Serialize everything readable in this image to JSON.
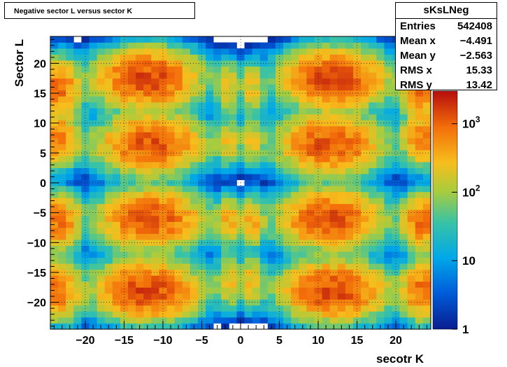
{
  "chart_data": {
    "type": "heatmap",
    "title": "Negative sector L versus sector K",
    "xlabel": "secotr K",
    "ylabel": "Sector L",
    "xlim": [
      -24.5,
      24.5
    ],
    "ylim": [
      -24.5,
      24.5
    ],
    "x_ticks": [
      "−20",
      "−15",
      "−10",
      "−5",
      "0",
      "5",
      "10",
      "15",
      "20"
    ],
    "x_tick_values": [
      -20,
      -15,
      -10,
      -5,
      0,
      5,
      10,
      15,
      20
    ],
    "y_ticks": [
      "−20",
      "−15",
      "−10",
      "−5",
      "0",
      "5",
      "10",
      "15",
      "20"
    ],
    "y_tick_values": [
      -20,
      -15,
      -10,
      -5,
      0,
      5,
      10,
      15,
      20
    ],
    "z_scale": "log",
    "zlim": [
      1,
      3000
    ],
    "palette_labels": [
      {
        "base": "1",
        "exp": "",
        "value": 1
      },
      {
        "base": "10",
        "exp": "",
        "value": 10
      },
      {
        "base": "10",
        "exp": "2",
        "value": 100
      },
      {
        "base": "10",
        "exp": "3",
        "value": 1000
      }
    ],
    "grid": true,
    "clusters": [
      {
        "cx": -12,
        "cy": 17.5,
        "sx": 3.2,
        "sy": 2.3,
        "peak": 1500
      },
      {
        "cx": 12,
        "cy": 17.5,
        "sx": 3.2,
        "sy": 2.3,
        "peak": 1500
      },
      {
        "cx": -12,
        "cy": -18,
        "sx": 3.2,
        "sy": 2.3,
        "peak": 1500
      },
      {
        "cx": 12,
        "cy": -18,
        "sx": 3.2,
        "sy": 2.3,
        "peak": 1500
      },
      {
        "cx": -11.5,
        "cy": 6.5,
        "sx": 3.2,
        "sy": 2.3,
        "peak": 1300
      },
      {
        "cx": 11.5,
        "cy": 6.5,
        "sx": 3.2,
        "sy": 2.3,
        "peak": 1300
      },
      {
        "cx": -11.5,
        "cy": -6,
        "sx": 3.2,
        "sy": 2.3,
        "peak": 1300
      },
      {
        "cx": 11.5,
        "cy": -6,
        "sx": 3.2,
        "sy": 2.3,
        "peak": 1300
      },
      {
        "cx": -23.5,
        "cy": 16,
        "sx": 1.4,
        "sy": 2.3,
        "peak": 900
      },
      {
        "cx": 23.5,
        "cy": 16,
        "sx": 1.4,
        "sy": 2.3,
        "peak": 900
      },
      {
        "cx": -23.5,
        "cy": -18,
        "sx": 1.4,
        "sy": 2.3,
        "peak": 900
      },
      {
        "cx": 23.5,
        "cy": -18,
        "sx": 1.4,
        "sy": 2.3,
        "peak": 900
      },
      {
        "cx": -23.5,
        "cy": 7.5,
        "sx": 1.4,
        "sy": 2.2,
        "peak": 700
      },
      {
        "cx": 23.5,
        "cy": 7.5,
        "sx": 1.4,
        "sy": 2.2,
        "peak": 700
      },
      {
        "cx": -23.5,
        "cy": -6.5,
        "sx": 1.4,
        "sy": 2.2,
        "peak": 900
      },
      {
        "cx": 23.5,
        "cy": -6.5,
        "sx": 1.4,
        "sy": 2.2,
        "peak": 900
      },
      {
        "cx": -1.5,
        "cy": 16,
        "sx": 0.8,
        "sy": 2.2,
        "peak": 250
      },
      {
        "cx": 1.5,
        "cy": 16,
        "sx": 0.8,
        "sy": 2.2,
        "peak": 250
      },
      {
        "cx": -1.5,
        "cy": 7,
        "sx": 0.8,
        "sy": 2.0,
        "peak": 250
      },
      {
        "cx": 1.5,
        "cy": 7,
        "sx": 0.8,
        "sy": 2.0,
        "peak": 250
      },
      {
        "cx": -1.5,
        "cy": -6.5,
        "sx": 0.8,
        "sy": 2.0,
        "peak": 400
      },
      {
        "cx": 1.5,
        "cy": -6.5,
        "sx": 0.8,
        "sy": 2.0,
        "peak": 400
      },
      {
        "cx": -1.5,
        "cy": -16.5,
        "sx": 0.8,
        "sy": 2.2,
        "peak": 300
      },
      {
        "cx": 1.5,
        "cy": -16.5,
        "sx": 0.8,
        "sy": 2.2,
        "peak": 300
      }
    ]
  },
  "stats": {
    "name": "sKsLNeg",
    "rows": [
      {
        "label": "Entries",
        "value": "542408"
      },
      {
        "label": "Mean x",
        "value": "−4.491"
      },
      {
        "label": "Mean y",
        "value": "−2.563"
      },
      {
        "label": "RMS x",
        "value": "15.33"
      },
      {
        "label": "RMS y",
        "value": "13.42"
      }
    ]
  }
}
